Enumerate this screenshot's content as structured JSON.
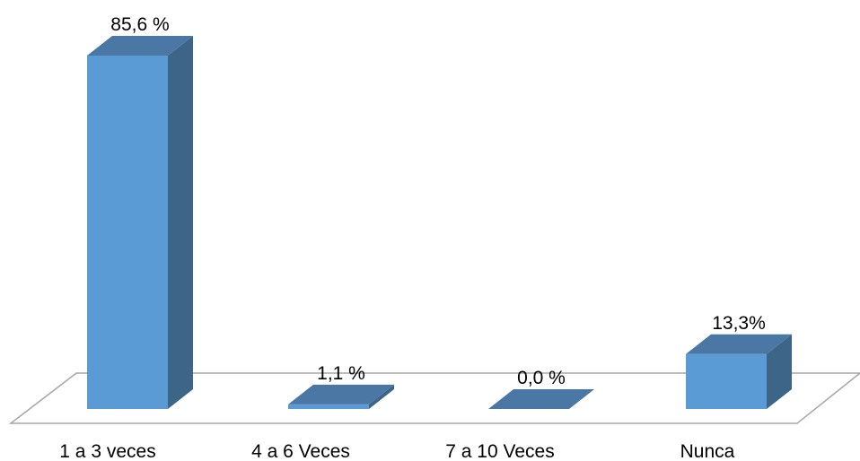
{
  "chart_data": {
    "type": "bar",
    "three_d": true,
    "categories": [
      "1 a 3 veces",
      "4 a 6 Veces",
      "7 a 10 Veces",
      "Nunca"
    ],
    "values": [
      85.6,
      1.1,
      0.0,
      13.3
    ],
    "data_labels": [
      "85,6 %",
      "1,1 %",
      "0,0 %",
      "13,3%"
    ],
    "title": "",
    "xlabel": "",
    "ylabel": "",
    "ylim": [
      0,
      85.6
    ],
    "grid": false,
    "legend": "none",
    "colors": {
      "front": "#5b9bd5",
      "side": "#3d6588",
      "top": "#4a77a3",
      "floor_line": "#a6a6a6"
    }
  }
}
